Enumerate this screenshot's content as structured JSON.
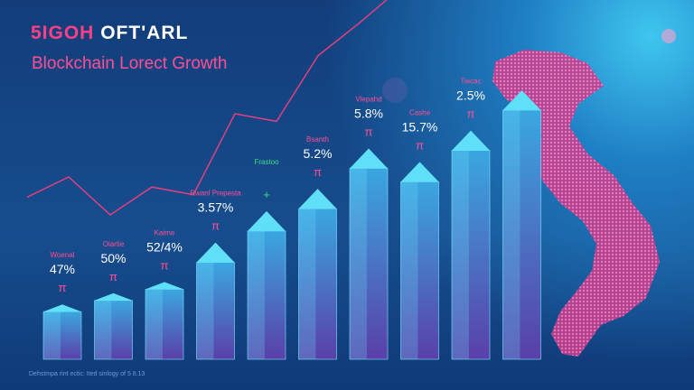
{
  "header": {
    "title_part1": "5IGOH",
    "title_part2": "OFT'ARL",
    "subtitle": "Blockchain Lorect Growth"
  },
  "footer": {
    "note": "Dehstmpa rint ectic: Ited sinlogy of 5 8.13"
  },
  "colors": {
    "accent_pink": "#ff4f93",
    "bar_cyan": "#4fd0f0",
    "green": "#3ddc84",
    "background": "#174d8e"
  },
  "chart_data": {
    "type": "bar",
    "title": "Blockchain Lorect Growth",
    "categories": [
      "Woenal",
      "Oiartie",
      "Kaime",
      "Rwanl Prepesta",
      "Frastoo",
      "Bsanth",
      "Vlepahd",
      "Cashe",
      "Tiecac",
      ""
    ],
    "value_labels": [
      "47%",
      "50%",
      "52/4%",
      "3.57%",
      "",
      "5.2%",
      "5.8%",
      "15.7%",
      "2.5%",
      ""
    ],
    "values": [
      10,
      15,
      20,
      32,
      46,
      56,
      74,
      68,
      82,
      100
    ],
    "ylim": [
      0,
      100
    ],
    "trend_line": [
      62,
      70,
      55,
      66,
      63,
      95,
      92,
      118,
      131,
      145
    ],
    "grid": false,
    "legend": "none"
  }
}
